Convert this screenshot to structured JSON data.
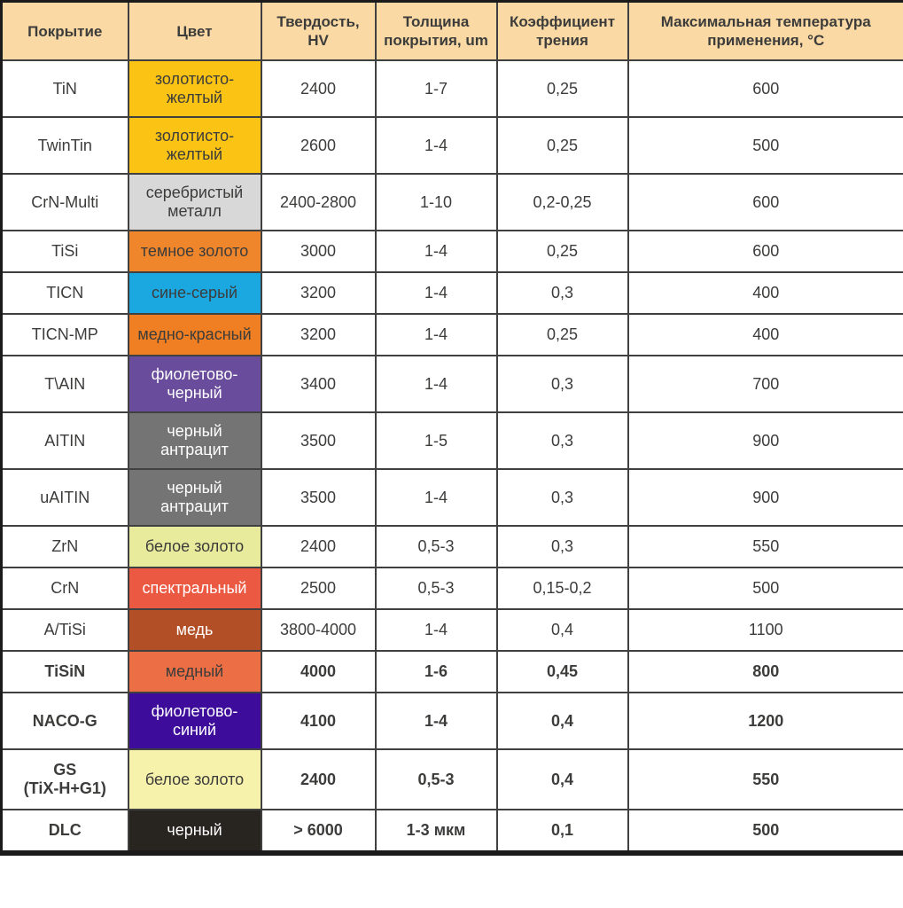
{
  "palette": {
    "header_bg": "#FBD9A4",
    "inner_border": "#404040",
    "outer_border": "#1B1B1B",
    "text_dark": "#3C3C3B",
    "text_light": "#FFFFFF",
    "row_bg": "#FFFFFF"
  },
  "table": {
    "columns": [
      {
        "label": "Покрытие"
      },
      {
        "label": "Цвет"
      },
      {
        "label": "Твердость,\nHV"
      },
      {
        "label": "Толщина\nпокрытия, um"
      },
      {
        "label": "Коэффициент\nтрения"
      },
      {
        "label": "Максимальная температура\nприменения, °C"
      }
    ],
    "rows": [
      {
        "name": "TiN",
        "color_label": "золотисто-желтый",
        "swatch": "#FBC314",
        "text_on_swatch": "dark",
        "hardness": "2400",
        "thickness": "1-7",
        "friction": "0,25",
        "max_temp": "600",
        "bold": false
      },
      {
        "name": "TwinTin",
        "color_label": "золотисто-желтый",
        "swatch": "#FBC314",
        "text_on_swatch": "dark",
        "hardness": "2600",
        "thickness": "1-4",
        "friction": "0,25",
        "max_temp": "500",
        "bold": false
      },
      {
        "name": "CrN-Multi",
        "color_label": "серебристый металл",
        "swatch": "#D8D8D8",
        "text_on_swatch": "dark",
        "hardness": "2400-2800",
        "thickness": "1-10",
        "friction": "0,2-0,25",
        "max_temp": "600",
        "bold": false
      },
      {
        "name": "TiSi",
        "color_label": "темное золото",
        "swatch": "#F0862C",
        "text_on_swatch": "dark",
        "hardness": "3000",
        "thickness": "1-4",
        "friction": "0,25",
        "max_temp": "600",
        "bold": false
      },
      {
        "name": "TICN",
        "color_label": "сине-серый",
        "swatch": "#1BA7E0",
        "text_on_swatch": "dark",
        "hardness": "3200",
        "thickness": "1-4",
        "friction": "0,3",
        "max_temp": "400",
        "bold": false
      },
      {
        "name": "TICN-MP",
        "color_label": "медно-красный",
        "swatch": "#EF7F22",
        "text_on_swatch": "dark",
        "hardness": "3200",
        "thickness": "1-4",
        "friction": "0,25",
        "max_temp": "400",
        "bold": false
      },
      {
        "name": "T\\AIN",
        "color_label": "фиолетово-черный",
        "swatch": "#6A4C9C",
        "text_on_swatch": "light",
        "hardness": "3400",
        "thickness": "1-4",
        "friction": "0,3",
        "max_temp": "700",
        "bold": false
      },
      {
        "name": "AITIN",
        "color_label": "черный антрацит",
        "swatch": "#757474",
        "text_on_swatch": "light",
        "hardness": "3500",
        "thickness": "1-5",
        "friction": "0,3",
        "max_temp": "900",
        "bold": false
      },
      {
        "name": "uAITIN",
        "color_label": "черный антрацит",
        "swatch": "#757474",
        "text_on_swatch": "light",
        "hardness": "3500",
        "thickness": "1-4",
        "friction": "0,3",
        "max_temp": "900",
        "bold": false
      },
      {
        "name": "ZrN",
        "color_label": "белое золото",
        "swatch": "#E9EB9C",
        "text_on_swatch": "dark",
        "hardness": "2400",
        "thickness": "0,5-3",
        "friction": "0,3",
        "max_temp": "550",
        "bold": false
      },
      {
        "name": "CrN",
        "color_label": "спектральный",
        "swatch": "#EB5942",
        "text_on_swatch": "light",
        "hardness": "2500",
        "thickness": "0,5-3",
        "friction": "0,15-0,2",
        "max_temp": "500",
        "bold": false
      },
      {
        "name": "A/TiSi",
        "color_label": "медь",
        "swatch": "#B34F27",
        "text_on_swatch": "light",
        "hardness": "3800-4000",
        "thickness": "1-4",
        "friction": "0,4",
        "max_temp": "1100",
        "bold": false
      },
      {
        "name": "TiSiN",
        "color_label": "медный",
        "swatch": "#EB6E44",
        "text_on_swatch": "dark",
        "hardness": "4000",
        "thickness": "1-6",
        "friction": "0,45",
        "max_temp": "800",
        "bold": true
      },
      {
        "name": "NACO-G",
        "color_label": "фиолетово-синий",
        "swatch": "#3D0C9B",
        "text_on_swatch": "light",
        "hardness": "4100",
        "thickness": "1-4",
        "friction": "0,4",
        "max_temp": "1200",
        "bold": true
      },
      {
        "name": "GS\n(TiX-H+G1)",
        "color_label": "белое золото",
        "swatch": "#F6F1AB",
        "text_on_swatch": "dark",
        "hardness": "2400",
        "thickness": "0,5-3",
        "friction": "0,4",
        "max_temp": "550",
        "bold": true
      },
      {
        "name": "DLC",
        "color_label": "черный",
        "swatch": "#282420",
        "text_on_swatch": "light",
        "hardness": "> 6000",
        "thickness": "1-3 мкм",
        "friction": "0,1",
        "max_temp": "500",
        "bold": true
      }
    ]
  }
}
